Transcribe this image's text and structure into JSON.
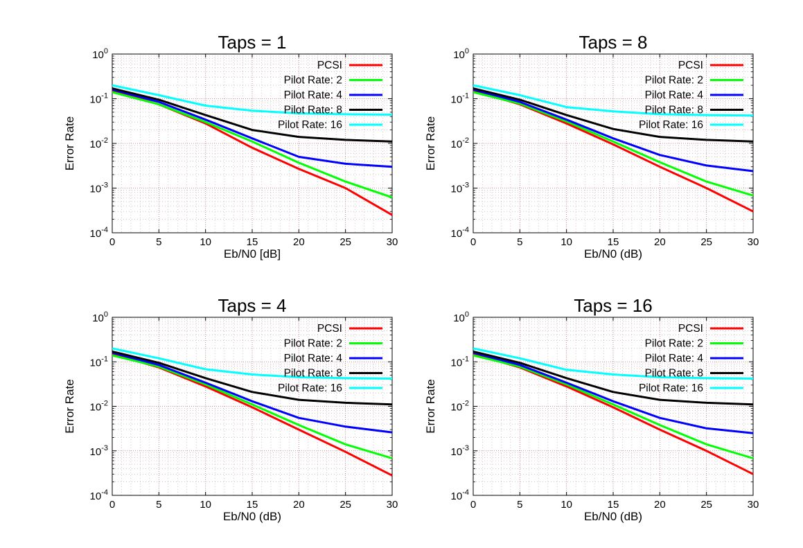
{
  "colors": {
    "PCSI": "#ff0000",
    "Pilot Rate: 2": "#00ff00",
    "Pilot Rate: 4": "#0000ff",
    "Pilot Rate: 8": "#000000",
    "Pilot Rate: 16": "#00ffff"
  },
  "chart_data": [
    {
      "type": "line",
      "title": "Taps = 1",
      "xlabel": "Eb/N0 [dB]",
      "ylabel": "Error Rate",
      "xlim": [
        0,
        30
      ],
      "ylim": [
        0.0001,
        1
      ],
      "yscale": "log",
      "grid": true,
      "legend_position": "top-right",
      "xticks": [
        "0",
        "5",
        "10",
        "15",
        "20",
        "25",
        "30"
      ],
      "yticks": [
        {
          "base": "10",
          "exp": "0"
        },
        {
          "base": "10",
          "exp": "-1"
        },
        {
          "base": "10",
          "exp": "-2"
        },
        {
          "base": "10",
          "exp": "-3"
        },
        {
          "base": "10",
          "exp": "-4"
        }
      ],
      "x": [
        0,
        5,
        10,
        15,
        20,
        25,
        30
      ],
      "series": [
        {
          "name": "PCSI",
          "values": [
            0.15,
            0.075,
            0.028,
            0.008,
            0.0027,
            0.001,
            0.00025
          ]
        },
        {
          "name": "Pilot Rate: 2",
          "values": [
            0.14,
            0.075,
            0.03,
            0.011,
            0.0037,
            0.0014,
            0.00062
          ]
        },
        {
          "name": "Pilot Rate: 4",
          "values": [
            0.16,
            0.085,
            0.034,
            0.013,
            0.005,
            0.0035,
            0.003
          ]
        },
        {
          "name": "Pilot Rate: 8",
          "values": [
            0.17,
            0.095,
            0.043,
            0.02,
            0.014,
            0.012,
            0.011
          ]
        },
        {
          "name": "Pilot Rate: 16",
          "values": [
            0.2,
            0.12,
            0.07,
            0.054,
            0.047,
            0.045,
            0.044
          ]
        }
      ]
    },
    {
      "type": "line",
      "title": "Taps = 8",
      "xlabel": "Eb/N0 (dB)",
      "ylabel": "Error Rate",
      "xlim": [
        0,
        30
      ],
      "ylim": [
        0.0001,
        1
      ],
      "yscale": "log",
      "grid": true,
      "legend_position": "top-right",
      "xticks": [
        "0",
        "5",
        "10",
        "15",
        "20",
        "25",
        "30"
      ],
      "yticks": [
        {
          "base": "10",
          "exp": "0"
        },
        {
          "base": "10",
          "exp": "-1"
        },
        {
          "base": "10",
          "exp": "-2"
        },
        {
          "base": "10",
          "exp": "-3"
        },
        {
          "base": "10",
          "exp": "-4"
        }
      ],
      "x": [
        0,
        5,
        10,
        15,
        20,
        25,
        30
      ],
      "series": [
        {
          "name": "PCSI",
          "values": [
            0.15,
            0.075,
            0.028,
            0.0095,
            0.003,
            0.001,
            0.0003
          ]
        },
        {
          "name": "Pilot Rate: 2",
          "values": [
            0.14,
            0.078,
            0.031,
            0.011,
            0.0038,
            0.0014,
            0.00068
          ]
        },
        {
          "name": "Pilot Rate: 4",
          "values": [
            0.16,
            0.085,
            0.034,
            0.013,
            0.0055,
            0.0032,
            0.0024
          ]
        },
        {
          "name": "Pilot Rate: 8",
          "values": [
            0.17,
            0.095,
            0.043,
            0.021,
            0.014,
            0.012,
            0.011
          ]
        },
        {
          "name": "Pilot Rate: 16",
          "values": [
            0.2,
            0.12,
            0.065,
            0.052,
            0.045,
            0.043,
            0.042
          ]
        }
      ]
    },
    {
      "type": "line",
      "title": "Taps = 4",
      "xlabel": "Eb/N0 (dB)",
      "ylabel": "Error Rate",
      "xlim": [
        0,
        30
      ],
      "ylim": [
        0.0001,
        1
      ],
      "yscale": "log",
      "grid": true,
      "legend_position": "top-right",
      "xticks": [
        "0",
        "5",
        "10",
        "15",
        "20",
        "25",
        "30"
      ],
      "yticks": [
        {
          "base": "10",
          "exp": "0"
        },
        {
          "base": "10",
          "exp": "-1"
        },
        {
          "base": "10",
          "exp": "-2"
        },
        {
          "base": "10",
          "exp": "-3"
        },
        {
          "base": "10",
          "exp": "-4"
        }
      ],
      "x": [
        0,
        5,
        10,
        15,
        20,
        25,
        30
      ],
      "series": [
        {
          "name": "PCSI",
          "values": [
            0.15,
            0.075,
            0.028,
            0.0095,
            0.003,
            0.00095,
            0.00028
          ]
        },
        {
          "name": "Pilot Rate: 2",
          "values": [
            0.14,
            0.078,
            0.031,
            0.011,
            0.0038,
            0.0014,
            0.00068
          ]
        },
        {
          "name": "Pilot Rate: 4",
          "values": [
            0.16,
            0.085,
            0.034,
            0.013,
            0.0055,
            0.0035,
            0.0026
          ]
        },
        {
          "name": "Pilot Rate: 8",
          "values": [
            0.17,
            0.095,
            0.043,
            0.021,
            0.014,
            0.012,
            0.011
          ]
        },
        {
          "name": "Pilot Rate: 16",
          "values": [
            0.2,
            0.12,
            0.068,
            0.052,
            0.045,
            0.043,
            0.042
          ]
        }
      ]
    },
    {
      "type": "line",
      "title": "Taps = 16",
      "xlabel": "Eb/N0 (dB)",
      "ylabel": "Error Rate",
      "xlim": [
        0,
        30
      ],
      "ylim": [
        0.0001,
        1
      ],
      "yscale": "log",
      "grid": true,
      "legend_position": "top-right",
      "xticks": [
        "0",
        "5",
        "10",
        "15",
        "20",
        "25",
        "30"
      ],
      "yticks": [
        {
          "base": "10",
          "exp": "0"
        },
        {
          "base": "10",
          "exp": "-1"
        },
        {
          "base": "10",
          "exp": "-2"
        },
        {
          "base": "10",
          "exp": "-3"
        },
        {
          "base": "10",
          "exp": "-4"
        }
      ],
      "x": [
        0,
        5,
        10,
        15,
        20,
        25,
        30
      ],
      "series": [
        {
          "name": "PCSI",
          "values": [
            0.15,
            0.075,
            0.028,
            0.0095,
            0.003,
            0.001,
            0.0003
          ]
        },
        {
          "name": "Pilot Rate: 2",
          "values": [
            0.14,
            0.078,
            0.031,
            0.011,
            0.0038,
            0.0014,
            0.00068
          ]
        },
        {
          "name": "Pilot Rate: 4",
          "values": [
            0.16,
            0.085,
            0.034,
            0.013,
            0.0055,
            0.0032,
            0.0025
          ]
        },
        {
          "name": "Pilot Rate: 8",
          "values": [
            0.17,
            0.095,
            0.043,
            0.021,
            0.014,
            0.012,
            0.011
          ]
        },
        {
          "name": "Pilot Rate: 16",
          "values": [
            0.2,
            0.12,
            0.066,
            0.052,
            0.045,
            0.043,
            0.042
          ]
        }
      ]
    }
  ]
}
